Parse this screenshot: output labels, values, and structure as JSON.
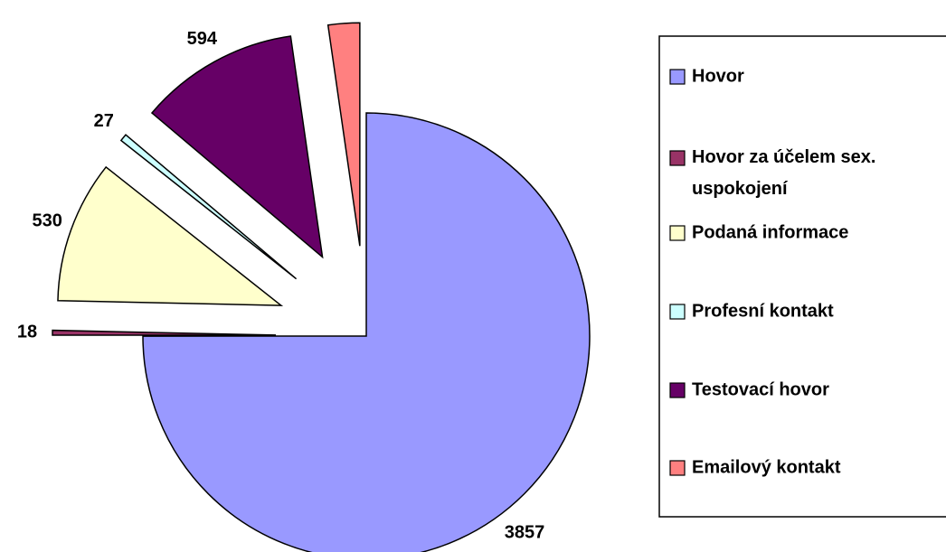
{
  "chart_data": {
    "type": "pie",
    "categories": [
      "Hovor",
      "Hovor za účelem sex. uspokojení",
      "Podaná informace",
      "Profesní kontakt",
      "Testovací hovor",
      "Emailový kontakt"
    ],
    "values": [
      3857,
      18,
      530,
      27,
      594,
      117
    ],
    "value_labels": [
      "3857",
      "18",
      "530",
      "27",
      "594",
      null
    ],
    "colors": [
      "#9999ff",
      "#993366",
      "#ffffcc",
      "#ccffff",
      "#660066",
      "#ff8080"
    ],
    "legend": "right"
  }
}
